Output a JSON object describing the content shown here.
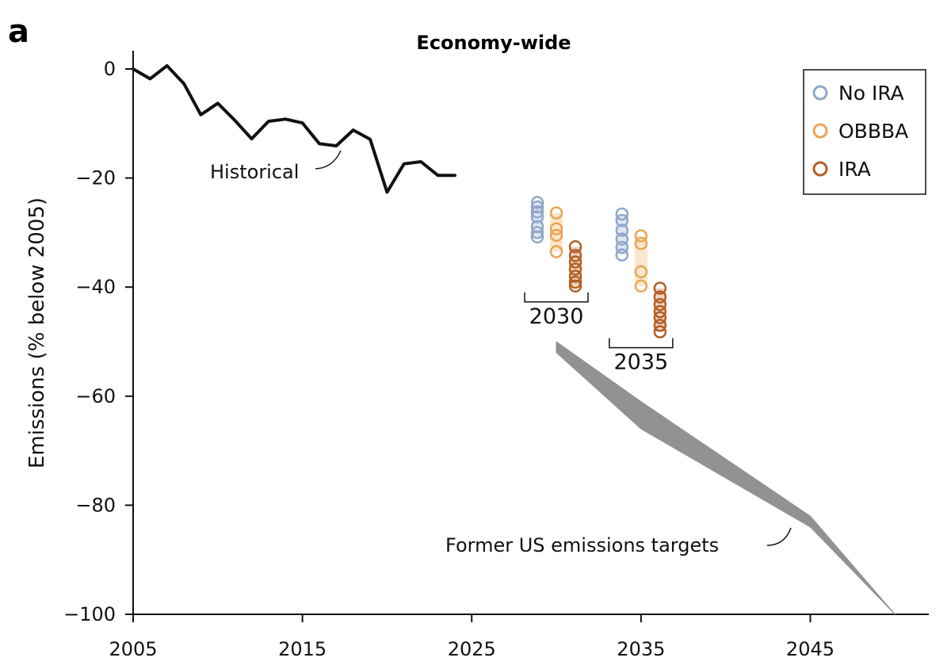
{
  "panel_letter": "a",
  "chart_data": {
    "type": "line",
    "title": "Economy-wide",
    "xlabel": "",
    "ylabel": "Emissions (% below 2005)",
    "xlim": [
      2005,
      2052
    ],
    "ylim": [
      -100,
      3
    ],
    "x_ticks": [
      2005,
      2015,
      2025,
      2035,
      2045
    ],
    "y_ticks": [
      0,
      -20,
      -40,
      -60,
      -80,
      -100
    ],
    "x_tick_labels": [
      "2005",
      "2015",
      "2025",
      "2035",
      "2045"
    ],
    "y_tick_labels": [
      "0",
      "−20",
      "−40",
      "−60",
      "−80",
      "−100"
    ],
    "grid": false,
    "legend_placement": "top-right",
    "historical": {
      "label": "Historical",
      "color": "#111111",
      "x": [
        2005,
        2006,
        2007,
        2008,
        2009,
        2010,
        2011,
        2012,
        2013,
        2014,
        2015,
        2016,
        2017,
        2018,
        2019,
        2020,
        2021,
        2022,
        2023,
        2024
      ],
      "y": [
        0,
        -1.8,
        0.6,
        -2.7,
        -8.4,
        -6.3,
        -9.4,
        -12.8,
        -9.6,
        -9.2,
        -9.9,
        -13.7,
        -14.1,
        -11.2,
        -12.9,
        -22.6,
        -17.4,
        -17.0,
        -19.5,
        -19.5
      ]
    },
    "target_band": {
      "label": "Former US emissions targets",
      "color": "#929292",
      "x": [
        2030,
        2035,
        2045,
        2050
      ],
      "upper": [
        -50,
        -61,
        -82,
        -100
      ],
      "lower": [
        -52,
        -66,
        -84,
        -100
      ]
    },
    "series": [
      {
        "name": "No IRA",
        "color": "#8fa7c9",
        "groups": [
          {
            "x": 2030,
            "values": [
              -24.5,
              -25.3,
              -26.2,
              -27.1,
              -28.9,
              -30.0,
              -30.8
            ]
          },
          {
            "x": 2035,
            "values": [
              -26.6,
              -27.8,
              -29.6,
              -31.2,
              -32.7,
              -34.1
            ]
          }
        ]
      },
      {
        "name": "OBBBA",
        "color": "#e9a552",
        "groups": [
          {
            "x": 2030,
            "values": [
              -26.4,
              -29.3,
              -30.5,
              -33.5
            ]
          },
          {
            "x": 2035,
            "values": [
              -30.6,
              -32.0,
              -37.2,
              -39.8
            ]
          }
        ]
      },
      {
        "name": "IRA",
        "color": "#b35f25",
        "groups": [
          {
            "x": 2030,
            "values": [
              -32.6,
              -34.2,
              -35.4,
              -36.7,
              -38.0,
              -39.1,
              -39.8
            ]
          },
          {
            "x": 2035,
            "values": [
              -40.2,
              -41.8,
              -43.2,
              -44.5,
              -45.6,
              -47.0,
              -48.2
            ]
          }
        ]
      }
    ],
    "group_labels": [
      {
        "x": 2030,
        "label": "2030"
      },
      {
        "x": 2035,
        "label": "2035"
      }
    ],
    "legend": [
      "No IRA",
      "OBBBA",
      "IRA"
    ]
  }
}
